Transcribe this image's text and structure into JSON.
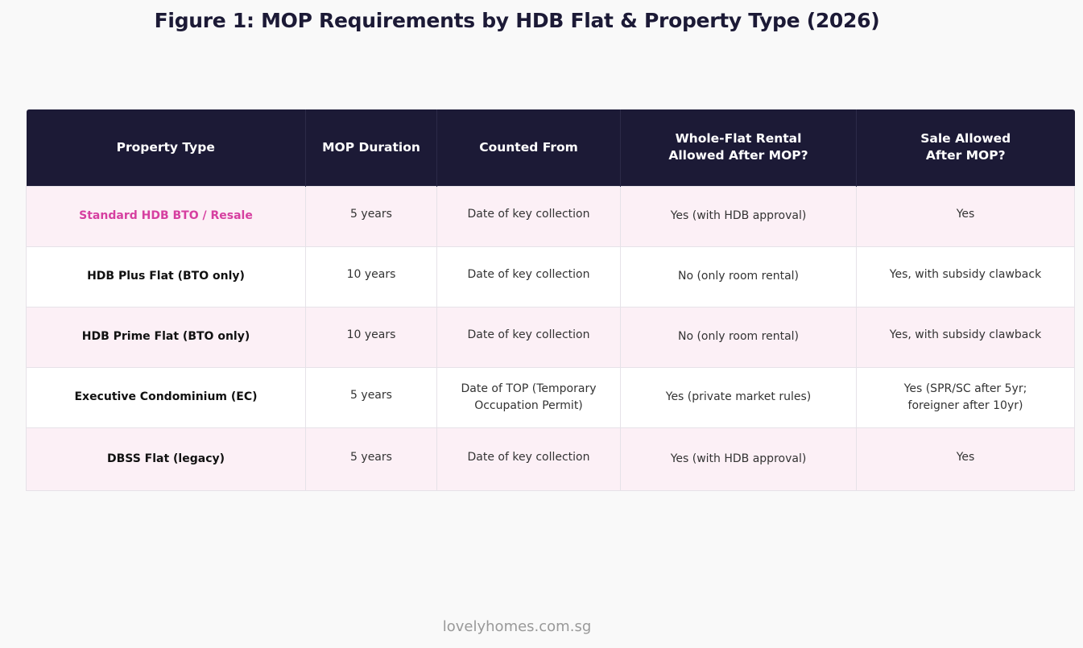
{
  "title": "Figure 1: MOP Requirements by HDB Flat & Property Type (2026)",
  "table": {
    "headers": [
      {
        "line1": "Property Type",
        "line2": ""
      },
      {
        "line1": "MOP Duration",
        "line2": ""
      },
      {
        "line1": "Counted From",
        "line2": ""
      },
      {
        "line1": "Whole-Flat Rental",
        "line2": "Allowed After MOP?"
      },
      {
        "line1": "Sale Allowed",
        "line2": "After MOP?"
      }
    ],
    "rows": [
      {
        "property_type": "Standard HDB BTO / Resale",
        "mop_duration": "5 years",
        "counted_from": {
          "line1": "Date of key collection",
          "line2": ""
        },
        "rental": "Yes (with HDB approval)",
        "sale": {
          "line1": "Yes",
          "line2": ""
        }
      },
      {
        "property_type": "HDB Plus Flat (BTO only)",
        "mop_duration": "10 years",
        "counted_from": {
          "line1": "Date of key collection",
          "line2": ""
        },
        "rental": "No (only room rental)",
        "sale": {
          "line1": "Yes, with subsidy clawback",
          "line2": ""
        }
      },
      {
        "property_type": "HDB Prime Flat (BTO only)",
        "mop_duration": "10 years",
        "counted_from": {
          "line1": "Date of key collection",
          "line2": ""
        },
        "rental": "No (only room rental)",
        "sale": {
          "line1": "Yes, with subsidy clawback",
          "line2": ""
        }
      },
      {
        "property_type": "Executive Condominium (EC)",
        "mop_duration": "5 years",
        "counted_from": {
          "line1": "Date of TOP (Temporary",
          "line2": "Occupation Permit)"
        },
        "rental": "Yes (private market rules)",
        "sale": {
          "line1": "Yes (SPR/SC after 5yr;",
          "line2": "foreigner after 10yr)"
        }
      },
      {
        "property_type": "DBSS Flat (legacy)",
        "mop_duration": "5 years",
        "counted_from": {
          "line1": "Date of key collection",
          "line2": ""
        },
        "rental": "Yes (with HDB approval)",
        "sale": {
          "line1": "Yes",
          "line2": ""
        }
      }
    ]
  },
  "footer": "lovelyhomes.com.sg",
  "colors": {
    "header_bg": "#1c1a36",
    "accent_pink": "#d63fa0",
    "stripe_row_bg": "#fcf0f6"
  }
}
